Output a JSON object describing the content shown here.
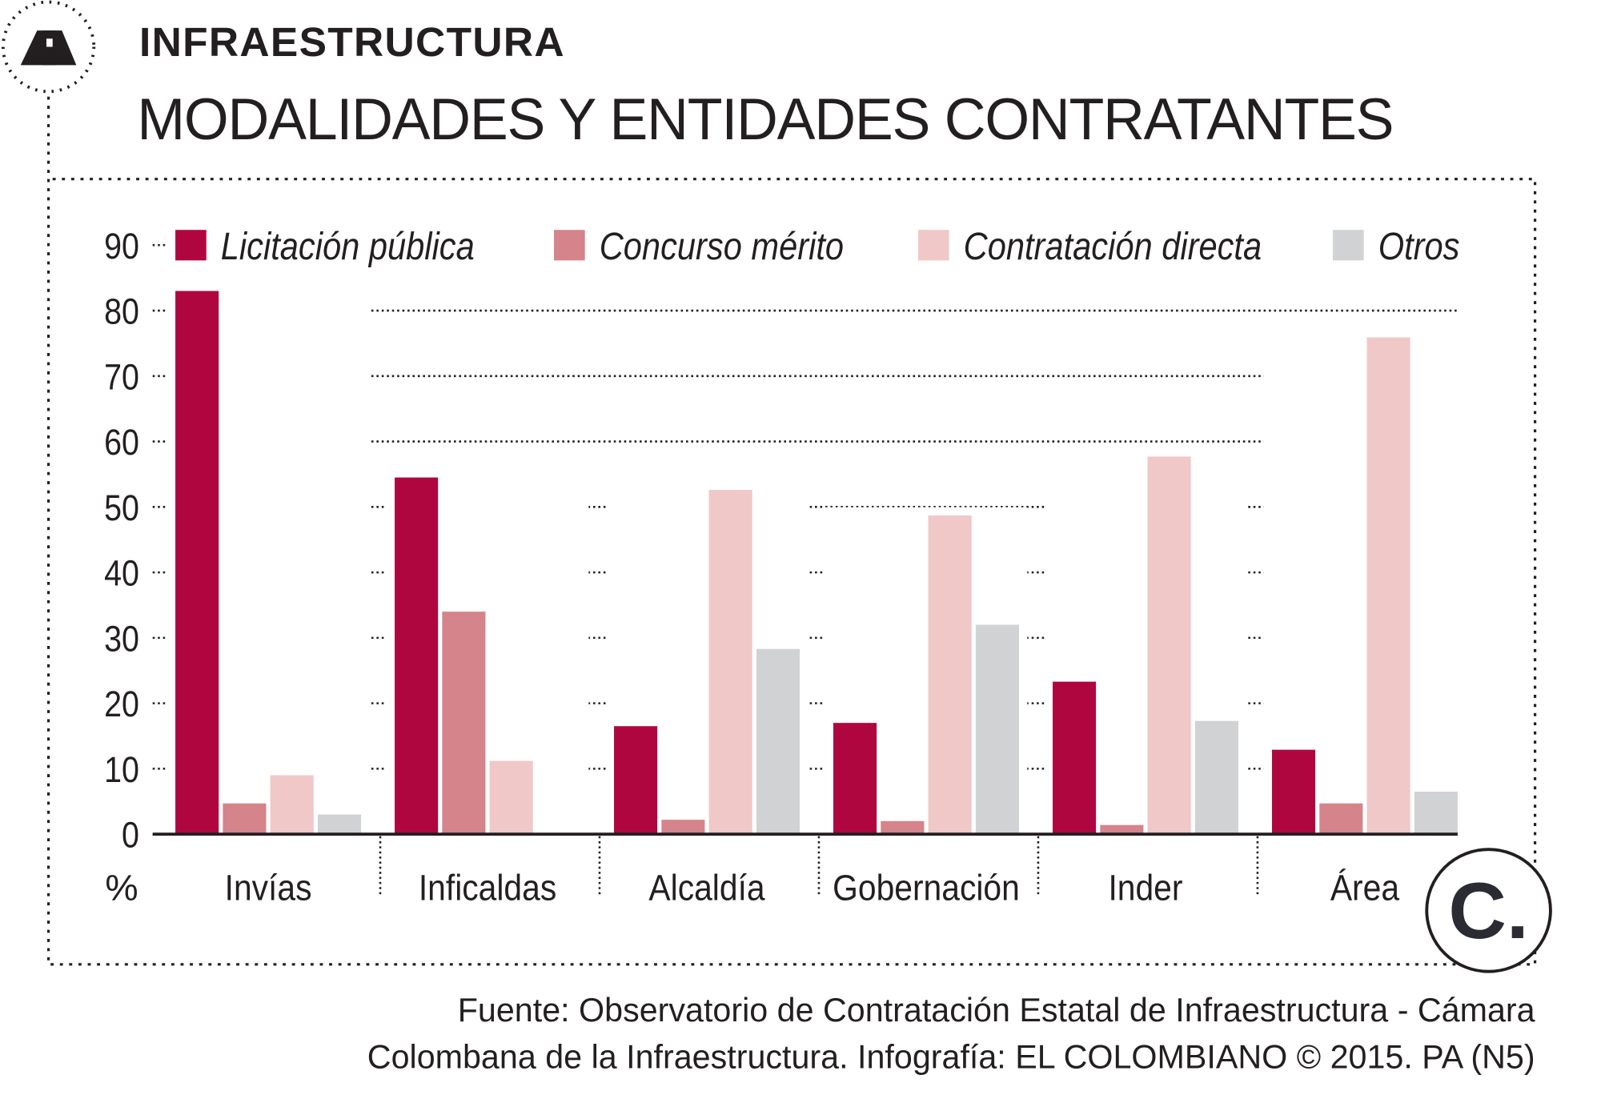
{
  "header": {
    "section": "INFRAESTRUCTURA",
    "title": "MODALIDADES Y ENTIDADES CONTRATANTES"
  },
  "source": {
    "line1": "Fuente: Observatorio de Contratación Estatal de Infraestructura - Cámara",
    "line2": "Colombana de la Infraestructura. Infografía: EL COLOMBIANO © 2015. PA (N5)"
  },
  "logo": {
    "text": "C."
  },
  "chart_data": {
    "type": "bar",
    "xlabel": "",
    "ylabel": "%",
    "ylim": [
      0,
      90
    ],
    "yticks": [
      "0",
      "10",
      "20",
      "30",
      "40",
      "50",
      "60",
      "70",
      "80",
      "90"
    ],
    "categories": [
      "Invías",
      "Inficaldas",
      "Alcaldía",
      "Gobernación",
      "Inder",
      "Área"
    ],
    "legend_position": "top",
    "grid": true,
    "series": [
      {
        "name": "Licitación pública",
        "color": "#b0063f",
        "values": [
          83,
          54.5,
          16.5,
          17,
          23.3,
          12.9
        ]
      },
      {
        "name": "Concurso mérito",
        "color": "#d4848a",
        "values": [
          4.7,
          34,
          2.2,
          2,
          1.4,
          4.7
        ]
      },
      {
        "name": "Contratación directa",
        "color": "#f0c8c8",
        "values": [
          9,
          11.2,
          52.6,
          48.7,
          57.7,
          75.9
        ]
      },
      {
        "name": "Otros",
        "color": "#d1d2d4",
        "values": [
          3,
          0,
          28.3,
          32,
          17.3,
          6.5
        ]
      }
    ]
  }
}
